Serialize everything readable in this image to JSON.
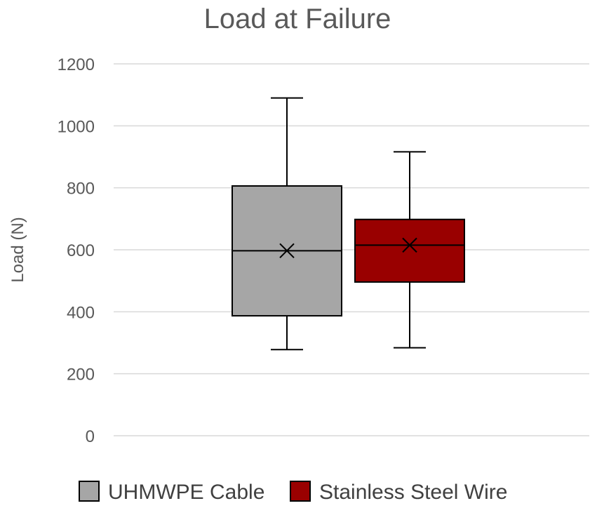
{
  "chart_data": {
    "type": "box",
    "title": "Load at Failure",
    "xlabel": "",
    "ylabel": "Load (N)",
    "ylim": [
      0,
      1200
    ],
    "yticks": [
      0,
      200,
      400,
      600,
      800,
      1000,
      1200
    ],
    "grid": true,
    "legend_position": "bottom",
    "series": [
      {
        "name": "UHMWPE Cable",
        "color": "#a6a6a6",
        "min": 278,
        "q1": 387,
        "median": 597,
        "q3": 806,
        "max": 1090,
        "mean": 597
      },
      {
        "name": "Stainless Steel Wire",
        "color": "#990000",
        "min": 284,
        "q1": 496,
        "median": 615,
        "q3": 698,
        "max": 916,
        "mean": 615
      }
    ]
  }
}
